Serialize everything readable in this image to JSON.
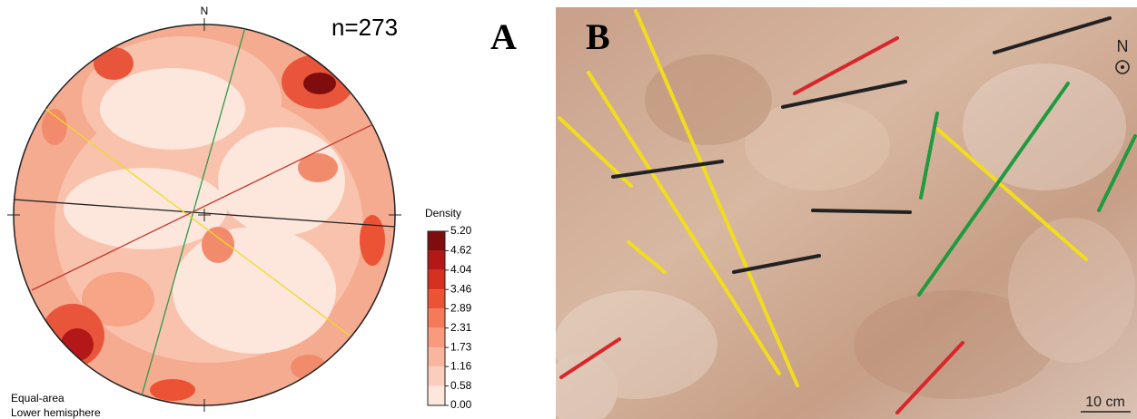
{
  "panel_a": {
    "label": "A",
    "north": "N",
    "count": "n=273",
    "legend": {
      "title": "Density",
      "ticks": [
        {
          "value": 5.2,
          "label": "5.20"
        },
        4.62,
        4.04,
        3.46,
        2.89,
        2.31,
        1.73,
        1.16,
        0.58,
        {
          "value": 0,
          "label": "0.00"
        }
      ],
      "colors": [
        "#7f0d0d",
        "#b31717",
        "#d6301f",
        "#ec5334",
        "#f57a59",
        "#f89a7e",
        "#f9b59e",
        "#fbcdbc",
        "#fde6dc"
      ]
    },
    "notes": [
      "Equal-area",
      "Lower hemisphere"
    ]
  },
  "panel_b": {
    "label": "B",
    "north": "N",
    "scale": "10 cm"
  }
}
